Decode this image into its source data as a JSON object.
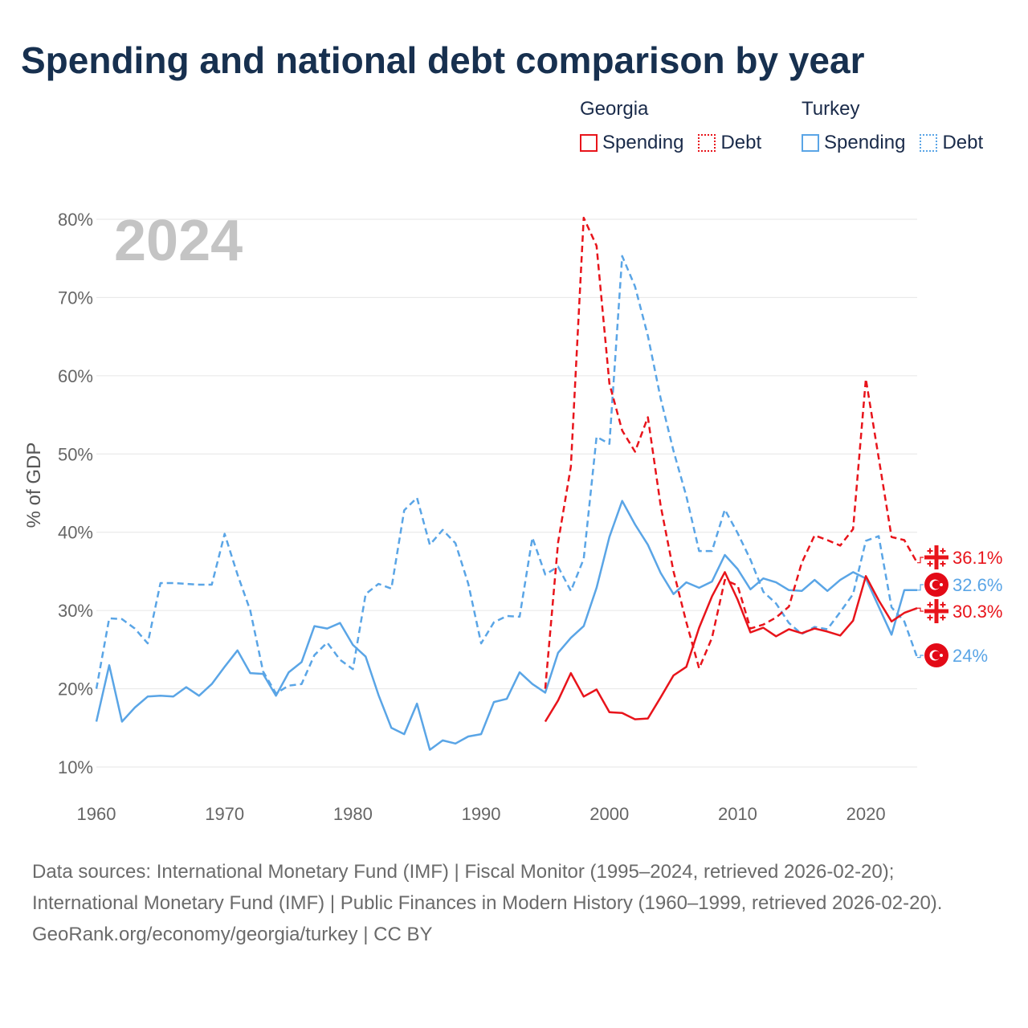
{
  "title": "Spending and national debt comparison by year",
  "legend": [
    {
      "country": "Georgia",
      "items": [
        {
          "label": "Spending",
          "style": "solid"
        },
        {
          "label": "Debt",
          "style": "dotted"
        }
      ],
      "color": "#e8141b"
    },
    {
      "country": "Turkey",
      "items": [
        {
          "label": "Spending",
          "style": "solid"
        },
        {
          "label": "Debt",
          "style": "dotted"
        }
      ],
      "color": "#5aa5e6"
    }
  ],
  "year_watermark": "2024",
  "footer": {
    "sources": "Data sources: International Monetary Fund (IMF) | Fiscal Monitor (1995–2024, retrieved 2026-02-20); International Monetary Fund (IMF) | Public Finances in Modern History (1960–1999, retrieved 2026-02-20).",
    "credit": "GeoRank.org/economy/georgia/turkey | CC BY"
  },
  "chart_data": {
    "type": "line",
    "title": "Spending and national debt comparison by year",
    "xlabel": "",
    "ylabel": "% of GDP",
    "xlim": [
      1960,
      2024
    ],
    "ylim": [
      8,
      82
    ],
    "x_ticks": [
      1960,
      1970,
      1980,
      1990,
      2000,
      2010,
      2020
    ],
    "y_ticks": [
      10,
      20,
      30,
      40,
      50,
      60,
      70,
      80
    ],
    "y_tick_labels": [
      "10%",
      "20%",
      "30%",
      "40%",
      "50%",
      "60%",
      "70%",
      "80%"
    ],
    "grid": true,
    "series": [
      {
        "name": "Turkey Spending",
        "country": "Turkey",
        "metric": "Spending",
        "color": "#5aa5e6",
        "dash": "solid",
        "x": [
          1960,
          1961,
          1962,
          1963,
          1964,
          1965,
          1966,
          1967,
          1968,
          1969,
          1970,
          1971,
          1972,
          1973,
          1974,
          1975,
          1976,
          1977,
          1978,
          1979,
          1980,
          1981,
          1982,
          1983,
          1984,
          1985,
          1986,
          1987,
          1988,
          1989,
          1990,
          1991,
          1992,
          1993,
          1994,
          1995,
          1996,
          1997,
          1998,
          1999,
          2000,
          2001,
          2002,
          2003,
          2004,
          2005,
          2006,
          2007,
          2008,
          2009,
          2010,
          2011,
          2012,
          2013,
          2014,
          2015,
          2016,
          2017,
          2018,
          2019,
          2020,
          2021,
          2022,
          2023,
          2024
        ],
        "values": [
          15.8,
          23.0,
          15.8,
          17.6,
          19.0,
          19.1,
          19.0,
          20.2,
          19.1,
          20.6,
          22.8,
          24.9,
          22.0,
          21.9,
          19.1,
          22.1,
          23.4,
          28.0,
          27.7,
          28.4,
          25.6,
          24.1,
          19.2,
          15.0,
          14.2,
          18.1,
          12.2,
          13.4,
          13.0,
          13.9,
          14.2,
          18.3,
          18.7,
          22.1,
          20.6,
          19.5,
          24.6,
          26.5,
          28.0,
          32.9,
          39.4,
          44.0,
          41.0,
          38.4,
          34.8,
          32.1,
          33.6,
          32.9,
          33.7,
          37.1,
          35.3,
          32.7,
          34.1,
          33.6,
          32.6,
          32.5,
          33.9,
          32.5,
          33.9,
          34.9,
          34.1,
          30.5,
          26.9,
          32.6,
          32.6
        ],
        "end_label": "32.6%"
      },
      {
        "name": "Turkey Debt",
        "country": "Turkey",
        "metric": "Debt",
        "color": "#5aa5e6",
        "dash": "dashed",
        "x": [
          1960,
          1961,
          1962,
          1963,
          1964,
          1965,
          1966,
          1967,
          1968,
          1969,
          1970,
          1971,
          1972,
          1973,
          1974,
          1975,
          1976,
          1977,
          1978,
          1979,
          1980,
          1981,
          1982,
          1983,
          1984,
          1985,
          1986,
          1987,
          1988,
          1989,
          1990,
          1991,
          1992,
          1993,
          1994,
          1995,
          1996,
          1997,
          1998,
          1999,
          2000,
          2001,
          2002,
          2003,
          2004,
          2005,
          2006,
          2007,
          2008,
          2009,
          2010,
          2011,
          2012,
          2013,
          2014,
          2015,
          2016,
          2017,
          2018,
          2019,
          2020,
          2021,
          2022,
          2023,
          2024
        ],
        "values": [
          20.0,
          29.0,
          28.9,
          27.7,
          25.8,
          33.5,
          33.5,
          33.4,
          33.3,
          33.3,
          39.8,
          34.6,
          30.0,
          22.2,
          19.4,
          20.4,
          20.6,
          24.3,
          25.9,
          23.7,
          22.5,
          32.1,
          33.4,
          32.8,
          42.8,
          44.4,
          38.4,
          40.3,
          38.6,
          33.4,
          25.8,
          28.5,
          29.3,
          29.2,
          39.3,
          34.6,
          35.6,
          32.5,
          36.6,
          52.2,
          51.3,
          75.3,
          71.4,
          65.1,
          57.1,
          50.4,
          44.6,
          37.6,
          37.6,
          42.9,
          39.9,
          36.5,
          32.4,
          30.9,
          28.4,
          27.0,
          27.9,
          27.6,
          29.8,
          32.1,
          38.9,
          39.5,
          30.4,
          28.6,
          24.0
        ],
        "end_label": "24%"
      },
      {
        "name": "Georgia Spending",
        "country": "Georgia",
        "metric": "Spending",
        "color": "#e8141b",
        "dash": "solid",
        "x": [
          1995,
          1996,
          1997,
          1998,
          1999,
          2000,
          2001,
          2002,
          2003,
          2004,
          2005,
          2006,
          2007,
          2008,
          2009,
          2010,
          2011,
          2012,
          2013,
          2014,
          2015,
          2016,
          2017,
          2018,
          2019,
          2020,
          2021,
          2022,
          2023,
          2024
        ],
        "values": [
          15.8,
          18.5,
          22.0,
          19.0,
          19.9,
          17.0,
          16.9,
          16.1,
          16.2,
          18.9,
          21.7,
          22.8,
          27.8,
          31.8,
          34.9,
          31.4,
          27.2,
          27.8,
          26.7,
          27.6,
          27.1,
          27.7,
          27.3,
          26.8,
          28.7,
          34.4,
          31.3,
          28.6,
          29.7,
          30.3
        ],
        "end_label": "30.3%"
      },
      {
        "name": "Georgia Debt",
        "country": "Georgia",
        "metric": "Debt",
        "color": "#e8141b",
        "dash": "dashed",
        "x": [
          1995,
          1996,
          1997,
          1998,
          1999,
          2000,
          2001,
          2002,
          2003,
          2004,
          2005,
          2006,
          2007,
          2008,
          2009,
          2010,
          2011,
          2012,
          2013,
          2014,
          2015,
          2016,
          2017,
          2018,
          2019,
          2020,
          2021,
          2022,
          2023,
          2024
        ],
        "values": [
          20.0,
          38.7,
          48.4,
          80.2,
          76.6,
          59.0,
          53.0,
          50.3,
          54.7,
          43.4,
          35.0,
          28.5,
          22.6,
          26.5,
          33.9,
          33.2,
          27.7,
          28.2,
          29.1,
          30.5,
          36.1,
          39.6,
          39.0,
          38.3,
          40.4,
          59.6,
          49.5,
          39.4,
          39.0,
          36.1
        ],
        "end_label": "36.1%"
      }
    ]
  }
}
